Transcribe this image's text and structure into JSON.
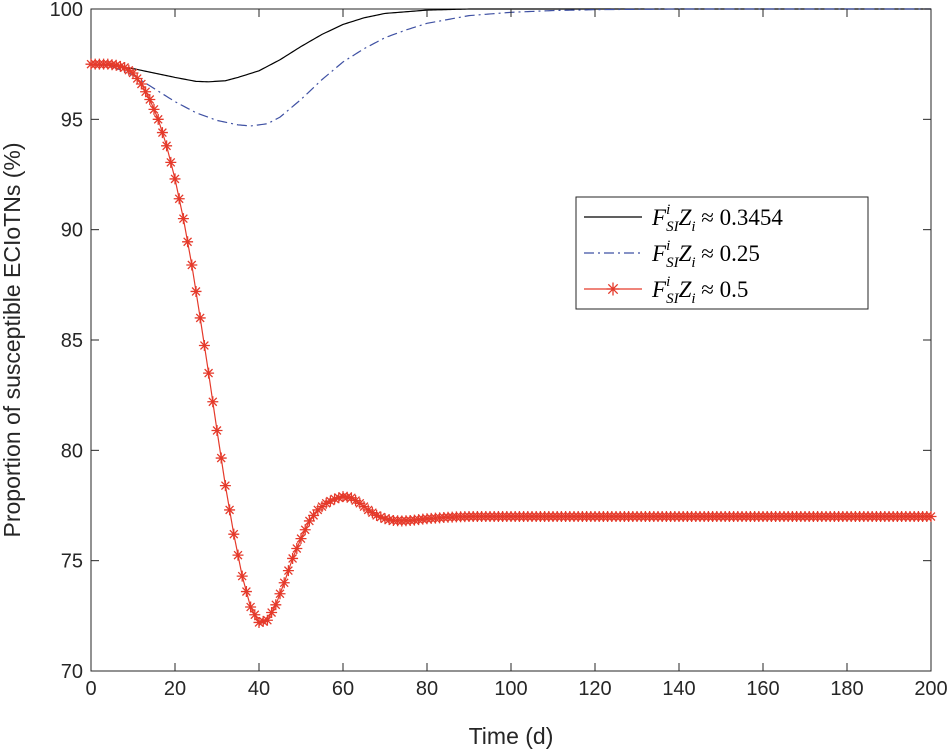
{
  "chart_data": {
    "type": "line",
    "title": "",
    "xlabel": "Time (d)",
    "ylabel": "Proportion of susceptible ECIoTNs (%)",
    "xlim": [
      0,
      200
    ],
    "ylim": [
      70,
      100
    ],
    "xticks": [
      0,
      20,
      40,
      60,
      80,
      100,
      120,
      140,
      160,
      180,
      200
    ],
    "yticks": [
      70,
      75,
      80,
      85,
      90,
      95,
      100
    ],
    "grid": false,
    "legend_position": "right",
    "series": [
      {
        "name": "F_SI^i Z_i ≈ 0.3454",
        "legend": {
          "base": "F",
          "sup": "i",
          "sub": "SI",
          "base2": "Z",
          "sub2": "i",
          "approx": "≈",
          "value": "0.3454"
        },
        "color": "#000000",
        "style": "solid",
        "marker": "none",
        "points": [
          [
            0,
            97.5
          ],
          [
            5,
            97.45
          ],
          [
            10,
            97.3
          ],
          [
            15,
            97.1
          ],
          [
            20,
            96.9
          ],
          [
            25,
            96.72
          ],
          [
            28,
            96.7
          ],
          [
            32,
            96.75
          ],
          [
            35,
            96.9
          ],
          [
            40,
            97.2
          ],
          [
            45,
            97.7
          ],
          [
            50,
            98.3
          ],
          [
            55,
            98.85
          ],
          [
            60,
            99.3
          ],
          [
            65,
            99.6
          ],
          [
            70,
            99.8
          ],
          [
            80,
            99.95
          ],
          [
            90,
            100
          ],
          [
            100,
            100
          ],
          [
            200,
            100
          ]
        ]
      },
      {
        "name": "F_SI^i Z_i ≈ 0.25",
        "legend": {
          "base": "F",
          "sup": "i",
          "sub": "SI",
          "base2": "Z",
          "sub2": "i",
          "approx": "≈",
          "value": "0.25"
        },
        "color": "#3f51a3",
        "style": "dashdot",
        "marker": "none",
        "points": [
          [
            0,
            97.5
          ],
          [
            5,
            97.4
          ],
          [
            10,
            97.0
          ],
          [
            15,
            96.4
          ],
          [
            20,
            95.8
          ],
          [
            25,
            95.3
          ],
          [
            30,
            94.95
          ],
          [
            35,
            94.75
          ],
          [
            38,
            94.7
          ],
          [
            42,
            94.8
          ],
          [
            45,
            95.1
          ],
          [
            50,
            95.9
          ],
          [
            55,
            96.8
          ],
          [
            60,
            97.6
          ],
          [
            65,
            98.2
          ],
          [
            70,
            98.7
          ],
          [
            75,
            99.05
          ],
          [
            80,
            99.35
          ],
          [
            90,
            99.7
          ],
          [
            100,
            99.85
          ],
          [
            110,
            99.93
          ],
          [
            120,
            99.97
          ],
          [
            140,
            100
          ],
          [
            200,
            100
          ]
        ]
      },
      {
        "name": "F_SI^i Z_i ≈ 0.5",
        "legend": {
          "base": "F",
          "sup": "i",
          "sub": "SI",
          "base2": "Z",
          "sub2": "i",
          "approx": "≈",
          "value": "0.5"
        },
        "color": "#e53a2b",
        "style": "solid",
        "marker": "asterisk",
        "points": [
          [
            0,
            97.5
          ],
          [
            2,
            97.5
          ],
          [
            4,
            97.5
          ],
          [
            6,
            97.45
          ],
          [
            8,
            97.35
          ],
          [
            10,
            97.1
          ],
          [
            12,
            96.6
          ],
          [
            14,
            95.9
          ],
          [
            16,
            95.0
          ],
          [
            18,
            93.8
          ],
          [
            20,
            92.3
          ],
          [
            22,
            90.5
          ],
          [
            24,
            88.4
          ],
          [
            26,
            86.0
          ],
          [
            28,
            83.5
          ],
          [
            30,
            80.9
          ],
          [
            32,
            78.4
          ],
          [
            34,
            76.2
          ],
          [
            36,
            74.3
          ],
          [
            38,
            72.9
          ],
          [
            40,
            72.2
          ],
          [
            42,
            72.3
          ],
          [
            44,
            73.0
          ],
          [
            46,
            74.0
          ],
          [
            48,
            75.1
          ],
          [
            50,
            76.0
          ],
          [
            52,
            76.8
          ],
          [
            54,
            77.3
          ],
          [
            56,
            77.6
          ],
          [
            58,
            77.8
          ],
          [
            60,
            77.9
          ],
          [
            62,
            77.85
          ],
          [
            64,
            77.6
          ],
          [
            66,
            77.3
          ],
          [
            68,
            77.05
          ],
          [
            70,
            76.9
          ],
          [
            72,
            76.82
          ],
          [
            74,
            76.8
          ],
          [
            76,
            76.82
          ],
          [
            78,
            76.86
          ],
          [
            80,
            76.9
          ],
          [
            85,
            76.97
          ],
          [
            90,
            77.0
          ],
          [
            100,
            77.0
          ],
          [
            200,
            77.0
          ]
        ]
      }
    ]
  }
}
